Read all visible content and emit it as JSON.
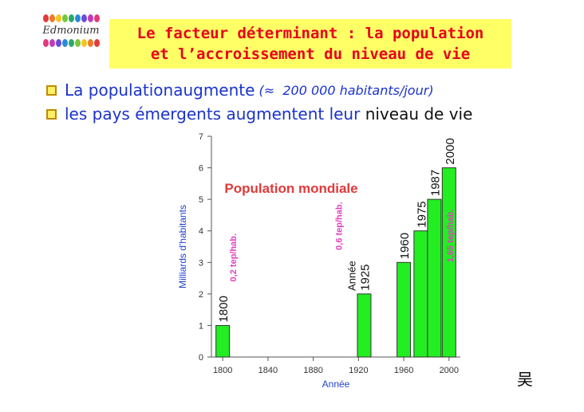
{
  "header": {
    "logo_text": "Edmonium",
    "title_line1": "Le facteur déterminant : la population",
    "title_line2": "et l’accroissement du niveau de vie"
  },
  "bullets": [
    {
      "a": "La population ",
      "b": "augmente",
      "c": " (≈  200 000 habitants/jour)"
    },
    {
      "a": "les pays émergents augmentent leur",
      "b": " niveau de vie"
    }
  ],
  "chart_data": {
    "type": "bar",
    "title": "Population mondiale",
    "xlabel": "Année",
    "ylabel": "Milliards d'habitants",
    "xlim": [
      1790,
      2010
    ],
    "ylim": [
      0,
      7
    ],
    "xticks": [
      1800,
      1840,
      1880,
      1920,
      1960,
      2000
    ],
    "yticks": [
      0,
      1,
      2,
      3,
      4,
      5,
      6,
      7
    ],
    "bars": [
      {
        "x": 1800,
        "value": 1,
        "label": "1800"
      },
      {
        "x": 1925,
        "value": 2,
        "label": "1925"
      },
      {
        "x": 1960,
        "value": 3,
        "label": "1960"
      },
      {
        "x": 1975,
        "value": 4,
        "label": "1975"
      },
      {
        "x": 1987,
        "value": 5,
        "label": "1987"
      },
      {
        "x": 2000,
        "value": 6,
        "label": "2000"
      }
    ],
    "annotations": [
      {
        "text": "0,2 tep/hab.",
        "x": 1800
      },
      {
        "text": "0,6 tep/hab.",
        "x": 1925
      },
      {
        "text": "1,65 tep/hab.",
        "x": 2000
      }
    ],
    "year_note": "Année",
    "bar_color": "#22ee22",
    "title_color": "#e03a3a",
    "annotation_color": "#e040c0",
    "axis_label_color": "#2244cc"
  },
  "signature": "吴"
}
